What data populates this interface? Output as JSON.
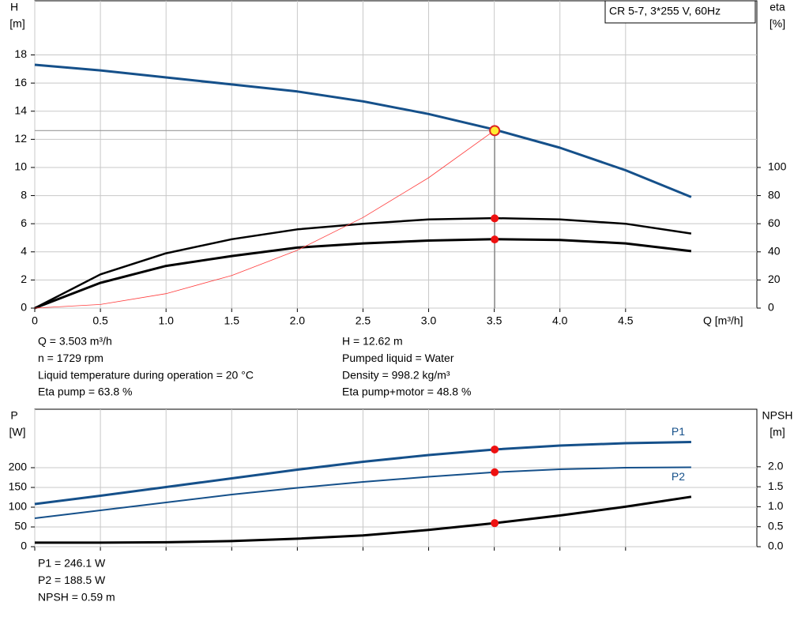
{
  "chart_data": [
    {
      "type": "line",
      "title": "CR 5-7, 3*255 V, 60Hz",
      "ylabel": "H",
      "yunit": "[m]",
      "y2label": "eta",
      "y2unit": "[%]",
      "xlabel": "Q [m³/h]",
      "xlim": [
        0,
        5.5
      ],
      "xticks": [
        0,
        0.5,
        {
          "value": 1,
          "label": "1.0"
        },
        1.5,
        {
          "value": 2,
          "label": "2.0"
        },
        2.5,
        {
          "value": 3,
          "label": "3.0"
        },
        3.5,
        {
          "value": 4,
          "label": "4.0"
        },
        4.5
      ],
      "ylim": [
        0,
        21.85
      ],
      "yticks": [
        0,
        2,
        4,
        6,
        8,
        10,
        12,
        14,
        16,
        18
      ],
      "y2lim": [
        0,
        218.5
      ],
      "y2ticks": [
        0,
        20,
        40,
        60,
        80,
        100
      ],
      "grid": true,
      "series": [
        {
          "color": "#15508a",
          "width": 3,
          "x": [
            0,
            0.5,
            1,
            1.5,
            2,
            2.5,
            3,
            3.5,
            4,
            4.5,
            5
          ],
          "values": [
            17.3,
            16.9,
            16.4,
            15.9,
            15.4,
            14.7,
            13.8,
            12.7,
            11.4,
            9.8,
            7.9
          ]
        },
        {
          "color": "#000000",
          "width": 2.5,
          "axis": "y2",
          "x": [
            0,
            0.5,
            1,
            1.5,
            2,
            2.5,
            3,
            3.5,
            4,
            4.5,
            5
          ],
          "values": [
            0,
            24,
            39,
            49,
            56,
            60,
            63,
            64,
            63,
            60,
            53
          ]
        },
        {
          "color": "#000000",
          "width": 3,
          "axis": "y2",
          "x": [
            0,
            0.5,
            1,
            1.5,
            2,
            2.5,
            3,
            3.5,
            4,
            4.5,
            5
          ],
          "values": [
            0,
            18,
            30,
            37,
            43,
            46,
            48,
            49,
            48.5,
            46,
            40.5
          ]
        },
        {
          "color": "#ff3b3b",
          "width": 0.8,
          "x": [
            0,
            0.5,
            1,
            1.5,
            2,
            2.5,
            3,
            3.5
          ],
          "values": [
            0,
            0.26,
            1.03,
            2.32,
            4.12,
            6.44,
            9.27,
            12.62
          ]
        }
      ],
      "duty": {
        "x": 3.503,
        "values": [
          12.62,
          63.8,
          48.8,
          null
        ]
      },
      "readout": [
        [
          "Q = 3.503 m³/h",
          "n = 1729 rpm",
          "Liquid temperature during operation = 20 °C",
          "Eta pump = 63.8 %"
        ],
        [
          "H = 12.62 m",
          "Pumped liquid = Water",
          "Density = 998.2 kg/m³",
          "Eta pump+motor = 48.8 %"
        ]
      ]
    },
    {
      "type": "line",
      "ylabel": "P",
      "yunit": "[W]",
      "y2label": "NPSH",
      "y2unit": "[m]",
      "xlim": [
        0,
        5.5
      ],
      "xticks": [
        0,
        0.5,
        1,
        1.5,
        2,
        2.5,
        3,
        3.5,
        4,
        4.5
      ],
      "ylim": [
        0,
        348
      ],
      "yticks": [
        0,
        50,
        100,
        150,
        200
      ],
      "y2lim": [
        0,
        3.44
      ],
      "y2ticks": [
        {
          "value": 0,
          "label": "0.0"
        },
        0.5,
        {
          "value": 1,
          "label": "1.0"
        },
        1.5,
        {
          "value": 2,
          "label": "2.0"
        }
      ],
      "grid": true,
      "series": [
        {
          "name": "P1",
          "color": "#15508a",
          "width": 3,
          "x": [
            0,
            0.5,
            1,
            1.5,
            2,
            2.5,
            3,
            3.5,
            4,
            4.5,
            5
          ],
          "values": [
            108,
            129,
            151,
            173,
            195,
            215,
            232,
            246,
            256,
            262,
            265
          ]
        },
        {
          "name": "P2",
          "color": "#15508a",
          "width": 2,
          "x": [
            0,
            0.5,
            1,
            1.5,
            2,
            2.5,
            3,
            3.5,
            4,
            4.5,
            5
          ],
          "values": [
            72,
            92,
            112,
            132,
            149,
            164,
            177,
            188.5,
            196,
            200,
            201
          ]
        },
        {
          "color": "#000000",
          "width": 3,
          "axis": "y2",
          "x": [
            0,
            0.5,
            1,
            1.5,
            2,
            2.5,
            3,
            3.5,
            4,
            4.5,
            5
          ],
          "values": [
            0.1,
            0.1,
            0.11,
            0.14,
            0.2,
            0.28,
            0.42,
            0.59,
            0.78,
            1.0,
            1.25
          ]
        }
      ],
      "duty": {
        "x": 3.503,
        "values": [
          246.1,
          188.5,
          0.59
        ]
      },
      "readout": [
        [
          "P1 = 246.1 W",
          "P2 = 188.5 W",
          "NPSH = 0.59 m"
        ]
      ]
    }
  ]
}
